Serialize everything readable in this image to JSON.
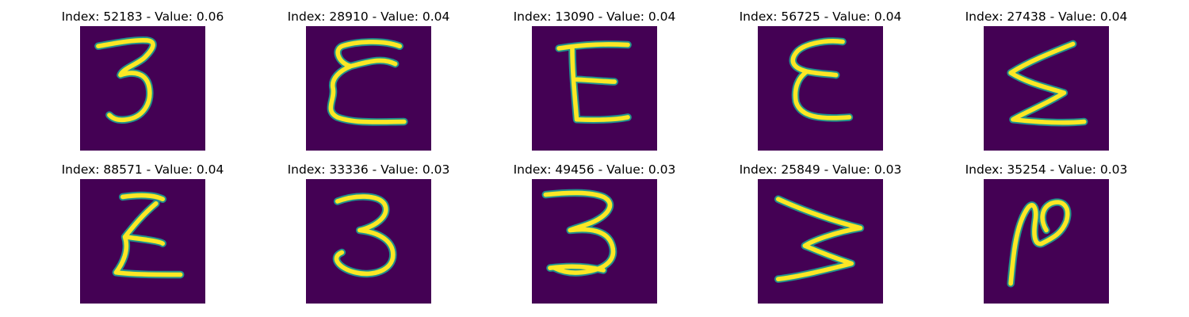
{
  "grid": {
    "items": [
      {
        "title": "Index: 52183 - Value: 0.06",
        "glyph": "handwritten-3-icon"
      },
      {
        "title": "Index: 28910 - Value: 0.04",
        "glyph": "handwritten-epsilon-icon"
      },
      {
        "title": "Index: 13090 - Value: 0.04",
        "glyph": "handwritten-E-icon"
      },
      {
        "title": "Index: 56725 - Value: 0.04",
        "glyph": "handwritten-epsilon-icon"
      },
      {
        "title": "Index: 27438 - Value: 0.04",
        "glyph": "handwritten-sigma-icon"
      },
      {
        "title": "Index: 88571 - Value: 0.04",
        "glyph": "handwritten-sigma-icon"
      },
      {
        "title": "Index: 33336 - Value: 0.03",
        "glyph": "handwritten-3-icon"
      },
      {
        "title": "Index: 49456 - Value: 0.03",
        "glyph": "handwritten-3-icon"
      },
      {
        "title": "Index: 25849 - Value: 0.03",
        "glyph": "handwritten-W-icon"
      },
      {
        "title": "Index: 35254 - Value: 0.03",
        "glyph": "handwritten-N-icon"
      }
    ]
  },
  "colors": {
    "background": "#440154",
    "stroke_edge": "#21918c",
    "stroke_core": "#fde725"
  }
}
